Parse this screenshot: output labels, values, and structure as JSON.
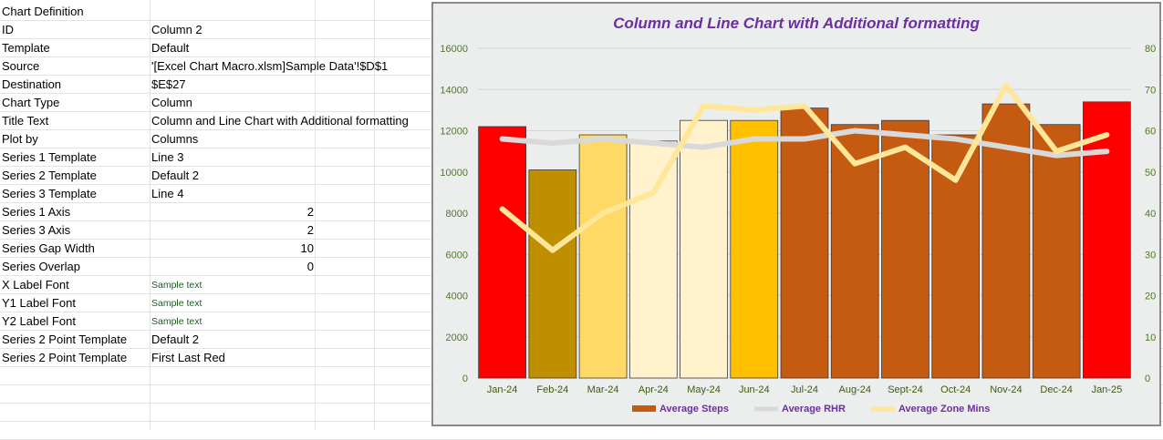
{
  "sheet": {
    "rows": [
      {
        "a": "Chart Definition",
        "b": ""
      },
      {
        "a": "ID",
        "b": "Column 2"
      },
      {
        "a": "Template",
        "b": "Default"
      },
      {
        "a": "Source",
        "b": "'[Excel Chart Macro.xlsm]Sample Data'!$D$1"
      },
      {
        "a": "Destination",
        "b": "$E$27"
      },
      {
        "a": "Chart Type",
        "b": "Column"
      },
      {
        "a": "Title Text",
        "b": "Column and Line Chart with Additional formatting"
      },
      {
        "a": "Plot by",
        "b": "Columns"
      },
      {
        "a": "Series 1 Template",
        "b": "Line 3"
      },
      {
        "a": "Series 2 Template",
        "b": "Default 2"
      },
      {
        "a": "Series 3 Template",
        "b": "Line 4"
      },
      {
        "a": "Series 1 Axis",
        "b": "2",
        "num": true
      },
      {
        "a": "Series 3 Axis",
        "b": "2",
        "num": true
      },
      {
        "a": "Series Gap Width",
        "b": "10",
        "num": true
      },
      {
        "a": "Series Overlap",
        "b": "0",
        "num": true
      },
      {
        "a": "X Label Font",
        "b": "Sample text",
        "small": true
      },
      {
        "a": "Y1 Label Font",
        "b": "Sample text",
        "small": true
      },
      {
        "a": "Y2 Label Font",
        "b": "Sample text",
        "small": true
      },
      {
        "a": "Series 2 Point Template",
        "b": "Default 2"
      },
      {
        "a": "Series 2 Point Template",
        "b": "First Last Red"
      },
      {
        "a": "",
        "b": ""
      },
      {
        "a": "",
        "b": ""
      },
      {
        "a": "",
        "b": ""
      },
      {
        "a": "",
        "b": ""
      }
    ]
  },
  "chart_data": {
    "type": "bar",
    "title": "Column and Line Chart with Additional formatting",
    "categories": [
      "Jan-24",
      "Feb-24",
      "Mar-24",
      "Apr-24",
      "May-24",
      "Jun-24",
      "Jul-24",
      "Aug-24",
      "Sept-24",
      "Oct-24",
      "Nov-24",
      "Dec-24",
      "Jan-25"
    ],
    "y_left": {
      "min": 0,
      "max": 16000,
      "step": 2000,
      "ticks": [
        "0",
        "2000",
        "4000",
        "6000",
        "8000",
        "10000",
        "12000",
        "14000",
        "16000"
      ]
    },
    "y_right": {
      "min": 0,
      "max": 80,
      "step": 10,
      "ticks": [
        "0",
        "10",
        "20",
        "30",
        "40",
        "50",
        "60",
        "70",
        "80"
      ]
    },
    "grid": true,
    "legend_position": "bottom",
    "series": [
      {
        "name": "Average Steps",
        "kind": "column",
        "axis": "left",
        "color": "#c55a11",
        "values": [
          12200,
          10100,
          11800,
          11500,
          12500,
          12500,
          13100,
          12300,
          12500,
          11800,
          13300,
          12300,
          13400
        ],
        "point_colors": [
          "#ff0000",
          "#bf8f00",
          "#ffd966",
          "#fff2cc",
          "#fff2cc",
          "#ffc000",
          "#c55a11",
          "#c55a11",
          "#c55a11",
          "#c55a11",
          "#c55a11",
          "#c55a11",
          "#ff0000"
        ]
      },
      {
        "name": "Average RHR",
        "kind": "line",
        "axis": "right",
        "color": "#d9d9d9",
        "values": [
          58,
          57,
          58,
          57,
          56,
          58,
          58,
          60,
          59,
          58,
          56,
          54,
          55
        ]
      },
      {
        "name": "Average Zone Mins",
        "kind": "line",
        "axis": "right",
        "color": "#ffe699",
        "values": [
          41,
          31,
          40,
          45,
          66,
          65,
          66,
          52,
          56,
          48,
          71,
          55,
          59
        ]
      }
    ]
  }
}
